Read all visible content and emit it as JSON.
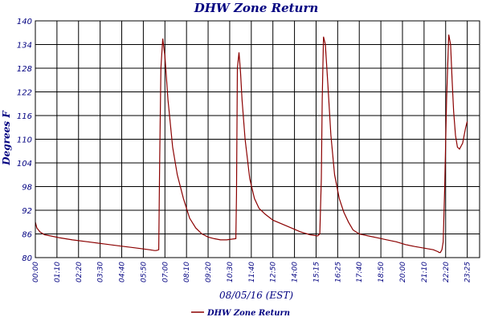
{
  "chart_data": {
    "type": "line",
    "title": "DHW Zone Return",
    "xlabel": "08/05/16 (EST)",
    "ylabel": "Degrees F",
    "ylim": [
      80,
      140
    ],
    "yticks": [
      80,
      86,
      92,
      98,
      104,
      110,
      116,
      122,
      128,
      134,
      140
    ],
    "xlim": [
      0,
      1440
    ],
    "xtick_minutes": [
      0,
      70,
      140,
      210,
      280,
      350,
      420,
      490,
      560,
      630,
      700,
      770,
      840,
      910,
      980,
      1050,
      1120,
      1190,
      1260,
      1330,
      1400
    ],
    "xtick_labels": [
      "00:00",
      "01:10",
      "02:20",
      "03:30",
      "04:40",
      "05:50",
      "07:00",
      "08:10",
      "09:20",
      "10:30",
      "11:40",
      "12:50",
      "14:00",
      "15:15",
      "16:25",
      "17:40",
      "18:50",
      "20:00",
      "21:10",
      "22:20",
      "23:25"
    ],
    "grid": true,
    "legend_position": "bottom",
    "series": [
      {
        "name": "DHW Zone Return",
        "color": "#8b0000",
        "x": [
          0,
          5,
          15,
          30,
          50,
          80,
          120,
          170,
          220,
          270,
          320,
          370,
          386,
          392,
          400,
          403,
          407,
          413,
          420,
          430,
          445,
          460,
          480,
          500,
          520,
          540,
          560,
          580,
          600,
          620,
          650,
          652,
          655,
          660,
          665,
          670,
          680,
          695,
          710,
          725,
          745,
          770,
          800,
          830,
          860,
          890,
          915,
          922,
          927,
          930,
          934,
          940,
          948,
          958,
          970,
          985,
          1000,
          1015,
          1030,
          1050,
          1080,
          1110,
          1140,
          1170,
          1200,
          1230,
          1260,
          1290,
          1305,
          1309,
          1313,
          1318,
          1322,
          1327,
          1333,
          1340,
          1346,
          1351,
          1356,
          1362,
          1368,
          1375,
          1385,
          1395,
          1400
        ],
        "y": [
          89,
          87.5,
          86.5,
          85.8,
          85.5,
          85,
          84.5,
          84,
          83.5,
          83,
          82.5,
          82,
          81.8,
          81.8,
          82,
          105,
          128,
          135.5,
          131,
          120,
          108,
          101,
          95,
          90,
          87.5,
          86,
          85.2,
          84.8,
          84.5,
          84.5,
          84.8,
          96,
          128,
          132,
          127,
          120,
          110,
          100,
          95,
          92.5,
          91,
          89.5,
          88.5,
          87.5,
          86.5,
          85.8,
          85.5,
          86,
          100,
          120,
          136,
          134,
          124,
          111,
          101,
          95,
          91.5,
          89,
          87,
          86,
          85.5,
          85,
          84.5,
          84,
          83.3,
          82.8,
          82.4,
          82,
          81.5,
          81.3,
          81.3,
          82,
          84,
          98,
          120,
          136.5,
          134,
          125,
          117,
          111,
          108,
          107.5,
          109,
          113,
          114.5
        ]
      }
    ]
  }
}
